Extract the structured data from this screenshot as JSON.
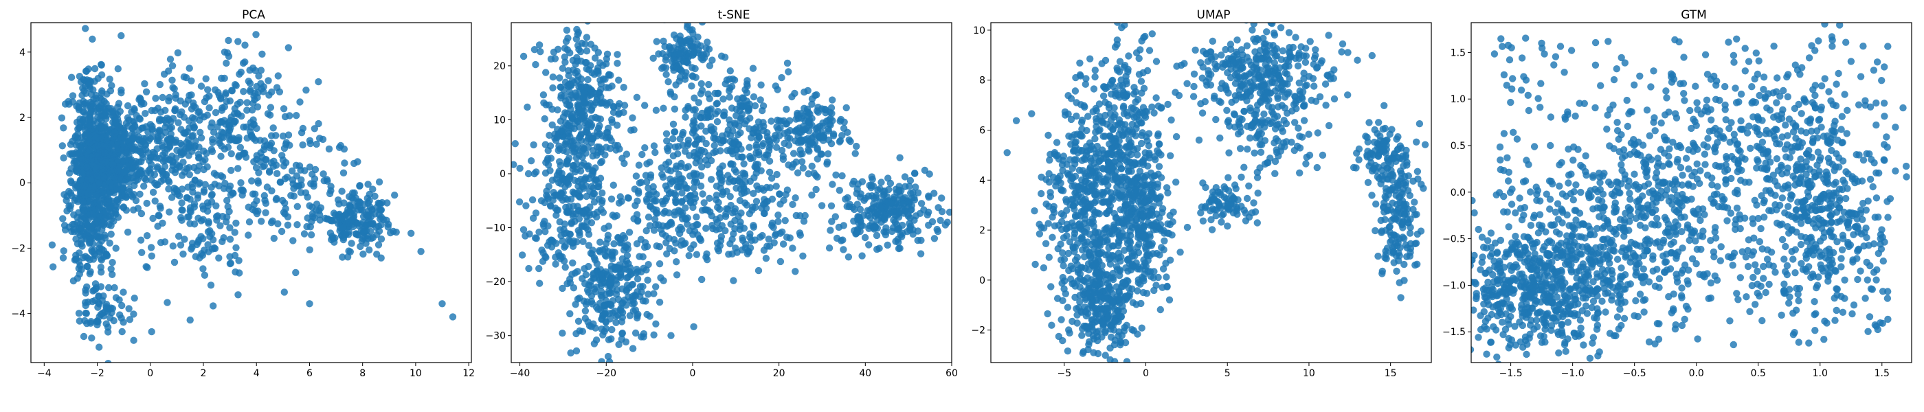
{
  "colors": {
    "point": "#1f77b4",
    "axes": "#000000",
    "background": "#ffffff"
  },
  "chart_data": [
    {
      "type": "scatter",
      "title": "PCA",
      "xlabel": "",
      "ylabel": "",
      "xlim": [
        -4.5,
        12.1
      ],
      "ylim": [
        -5.5,
        4.9
      ],
      "xticks": [
        -4,
        -2,
        0,
        2,
        4,
        6,
        8,
        10,
        12
      ],
      "yticks": [
        -4,
        -2,
        0,
        2,
        4
      ],
      "grid": false,
      "legend": "none",
      "point_count": 2000,
      "clusters": [
        {
          "weight": 0.34,
          "mean": [
            -2.2,
            0.2
          ],
          "sd": [
            0.45,
            1.5
          ]
        },
        {
          "weight": 0.18,
          "mean": [
            -1.3,
            0.8
          ],
          "sd": [
            0.55,
            0.7
          ]
        },
        {
          "weight": 0.14,
          "mean": [
            0.6,
            1.0
          ],
          "sd": [
            1.0,
            1.2
          ]
        },
        {
          "weight": 0.1,
          "mean": [
            3.2,
            1.8
          ],
          "sd": [
            1.0,
            1.1
          ]
        },
        {
          "weight": 0.09,
          "mean": [
            7.8,
            -1.1
          ],
          "sd": [
            0.7,
            0.5
          ]
        },
        {
          "weight": 0.07,
          "mean": [
            5.2,
            0.0
          ],
          "sd": [
            1.3,
            1.2
          ]
        },
        {
          "weight": 0.05,
          "mean": [
            2.0,
            -1.5
          ],
          "sd": [
            1.2,
            0.9
          ]
        },
        {
          "weight": 0.03,
          "mean": [
            -1.8,
            -4.0
          ],
          "sd": [
            0.6,
            0.5
          ]
        }
      ],
      "outliers": [
        [
          -3.7,
          -1.9
        ],
        [
          10.2,
          -2.1
        ],
        [
          11.0,
          -3.7
        ],
        [
          11.4,
          -4.1
        ],
        [
          6.0,
          -3.7
        ],
        [
          -1.1,
          4.5
        ],
        [
          2.8,
          4.0
        ],
        [
          1.5,
          -4.2
        ],
        [
          8.7,
          -2.3
        ]
      ]
    },
    {
      "type": "scatter",
      "title": "t-SNE",
      "xlabel": "",
      "ylabel": "",
      "xlim": [
        -42,
        60
      ],
      "ylim": [
        -35,
        28
      ],
      "xticks": [
        -40,
        -20,
        0,
        20,
        40,
        60
      ],
      "yticks": [
        -30,
        -20,
        -10,
        0,
        10,
        20
      ],
      "grid": false,
      "legend": "none",
      "point_count": 2000,
      "clusters": [
        {
          "weight": 0.17,
          "mean": [
            -25,
            12
          ],
          "sd": [
            5,
            7
          ]
        },
        {
          "weight": 0.13,
          "mean": [
            -18,
            -22
          ],
          "sd": [
            5,
            5
          ]
        },
        {
          "weight": 0.13,
          "mean": [
            -28,
            -6
          ],
          "sd": [
            6,
            6
          ]
        },
        {
          "weight": 0.14,
          "mean": [
            10,
            8
          ],
          "sd": [
            8,
            6
          ]
        },
        {
          "weight": 0.13,
          "mean": [
            45,
            -7
          ],
          "sd": [
            6,
            3.5
          ]
        },
        {
          "weight": 0.06,
          "mean": [
            -2,
            22
          ],
          "sd": [
            3,
            3
          ]
        },
        {
          "weight": 0.08,
          "mean": [
            -5,
            -5
          ],
          "sd": [
            5,
            6
          ]
        },
        {
          "weight": 0.07,
          "mean": [
            27,
            8
          ],
          "sd": [
            4,
            3
          ]
        },
        {
          "weight": 0.09,
          "mean": [
            12,
            -8
          ],
          "sd": [
            7,
            5
          ]
        }
      ],
      "outliers": [
        [
          -38,
          0
        ],
        [
          -35,
          -5
        ],
        [
          -40,
          1
        ],
        [
          -5,
          -30
        ],
        [
          56,
          -12
        ]
      ]
    },
    {
      "type": "scatter",
      "title": "UMAP",
      "xlabel": "",
      "ylabel": "",
      "xlim": [
        -9.5,
        17.5
      ],
      "ylim": [
        -3.3,
        10.3
      ],
      "xticks": [
        -5,
        0,
        5,
        10,
        15
      ],
      "yticks": [
        -2,
        0,
        2,
        4,
        6,
        8,
        10
      ],
      "grid": false,
      "legend": "none",
      "point_count": 2000,
      "clusters": [
        {
          "weight": 0.27,
          "mean": [
            -3.5,
            3.0
          ],
          "sd": [
            1.3,
            2.5
          ]
        },
        {
          "weight": 0.15,
          "mean": [
            -1.0,
            5.5
          ],
          "sd": [
            1.0,
            2.0
          ]
        },
        {
          "weight": 0.12,
          "mean": [
            -2.5,
            -1.0
          ],
          "sd": [
            1.0,
            1.0
          ]
        },
        {
          "weight": 0.11,
          "mean": [
            0.0,
            2.0
          ],
          "sd": [
            0.9,
            1.3
          ]
        },
        {
          "weight": 0.17,
          "mean": [
            7.0,
            8.3
          ],
          "sd": [
            2.3,
            0.9
          ]
        },
        {
          "weight": 0.06,
          "mean": [
            7.5,
            6.0
          ],
          "sd": [
            1.5,
            0.8
          ]
        },
        {
          "weight": 0.04,
          "mean": [
            5.0,
            3.0
          ],
          "sd": [
            1.0,
            0.4
          ]
        },
        {
          "weight": 0.08,
          "mean": [
            15.5,
            2.5
          ],
          "sd": [
            0.6,
            1.3
          ]
        },
        {
          "weight": 0.05,
          "mean": [
            14.5,
            5.0
          ],
          "sd": [
            0.8,
            0.6
          ]
        }
      ],
      "outliers": [
        [
          -8.5,
          5.1
        ],
        [
          10.5,
          4.5
        ],
        [
          16.5,
          0.6
        ],
        [
          1.5,
          0.8
        ]
      ]
    },
    {
      "type": "scatter",
      "title": "GTM",
      "xlabel": "",
      "ylabel": "",
      "xlim": [
        -1.82,
        1.74
      ],
      "ylim": [
        -1.83,
        1.82
      ],
      "xticks": [
        -1.5,
        -1.0,
        -0.5,
        0.0,
        0.5,
        1.0,
        1.5
      ],
      "yticks": [
        -1.5,
        -1.0,
        -0.5,
        0.0,
        0.5,
        1.0,
        1.5
      ],
      "grid": false,
      "legend": "none",
      "point_count": 2000,
      "clusters": [
        {
          "weight": 0.24,
          "mean": [
            -1.3,
            -1.0
          ],
          "sd": [
            0.3,
            0.35
          ]
        },
        {
          "weight": 0.12,
          "mean": [
            -0.7,
            -0.6
          ],
          "sd": [
            0.35,
            0.4
          ]
        },
        {
          "weight": 0.14,
          "mean": [
            1.0,
            -0.3
          ],
          "sd": [
            0.25,
            0.45
          ]
        },
        {
          "weight": 0.12,
          "mean": [
            0.5,
            0.5
          ],
          "sd": [
            0.5,
            0.4
          ]
        },
        {
          "weight": 0.1,
          "mean": [
            -0.2,
            -0.1
          ],
          "sd": [
            0.4,
            0.4
          ]
        }
      ],
      "uniform_weight": 0.28,
      "outliers": []
    }
  ]
}
